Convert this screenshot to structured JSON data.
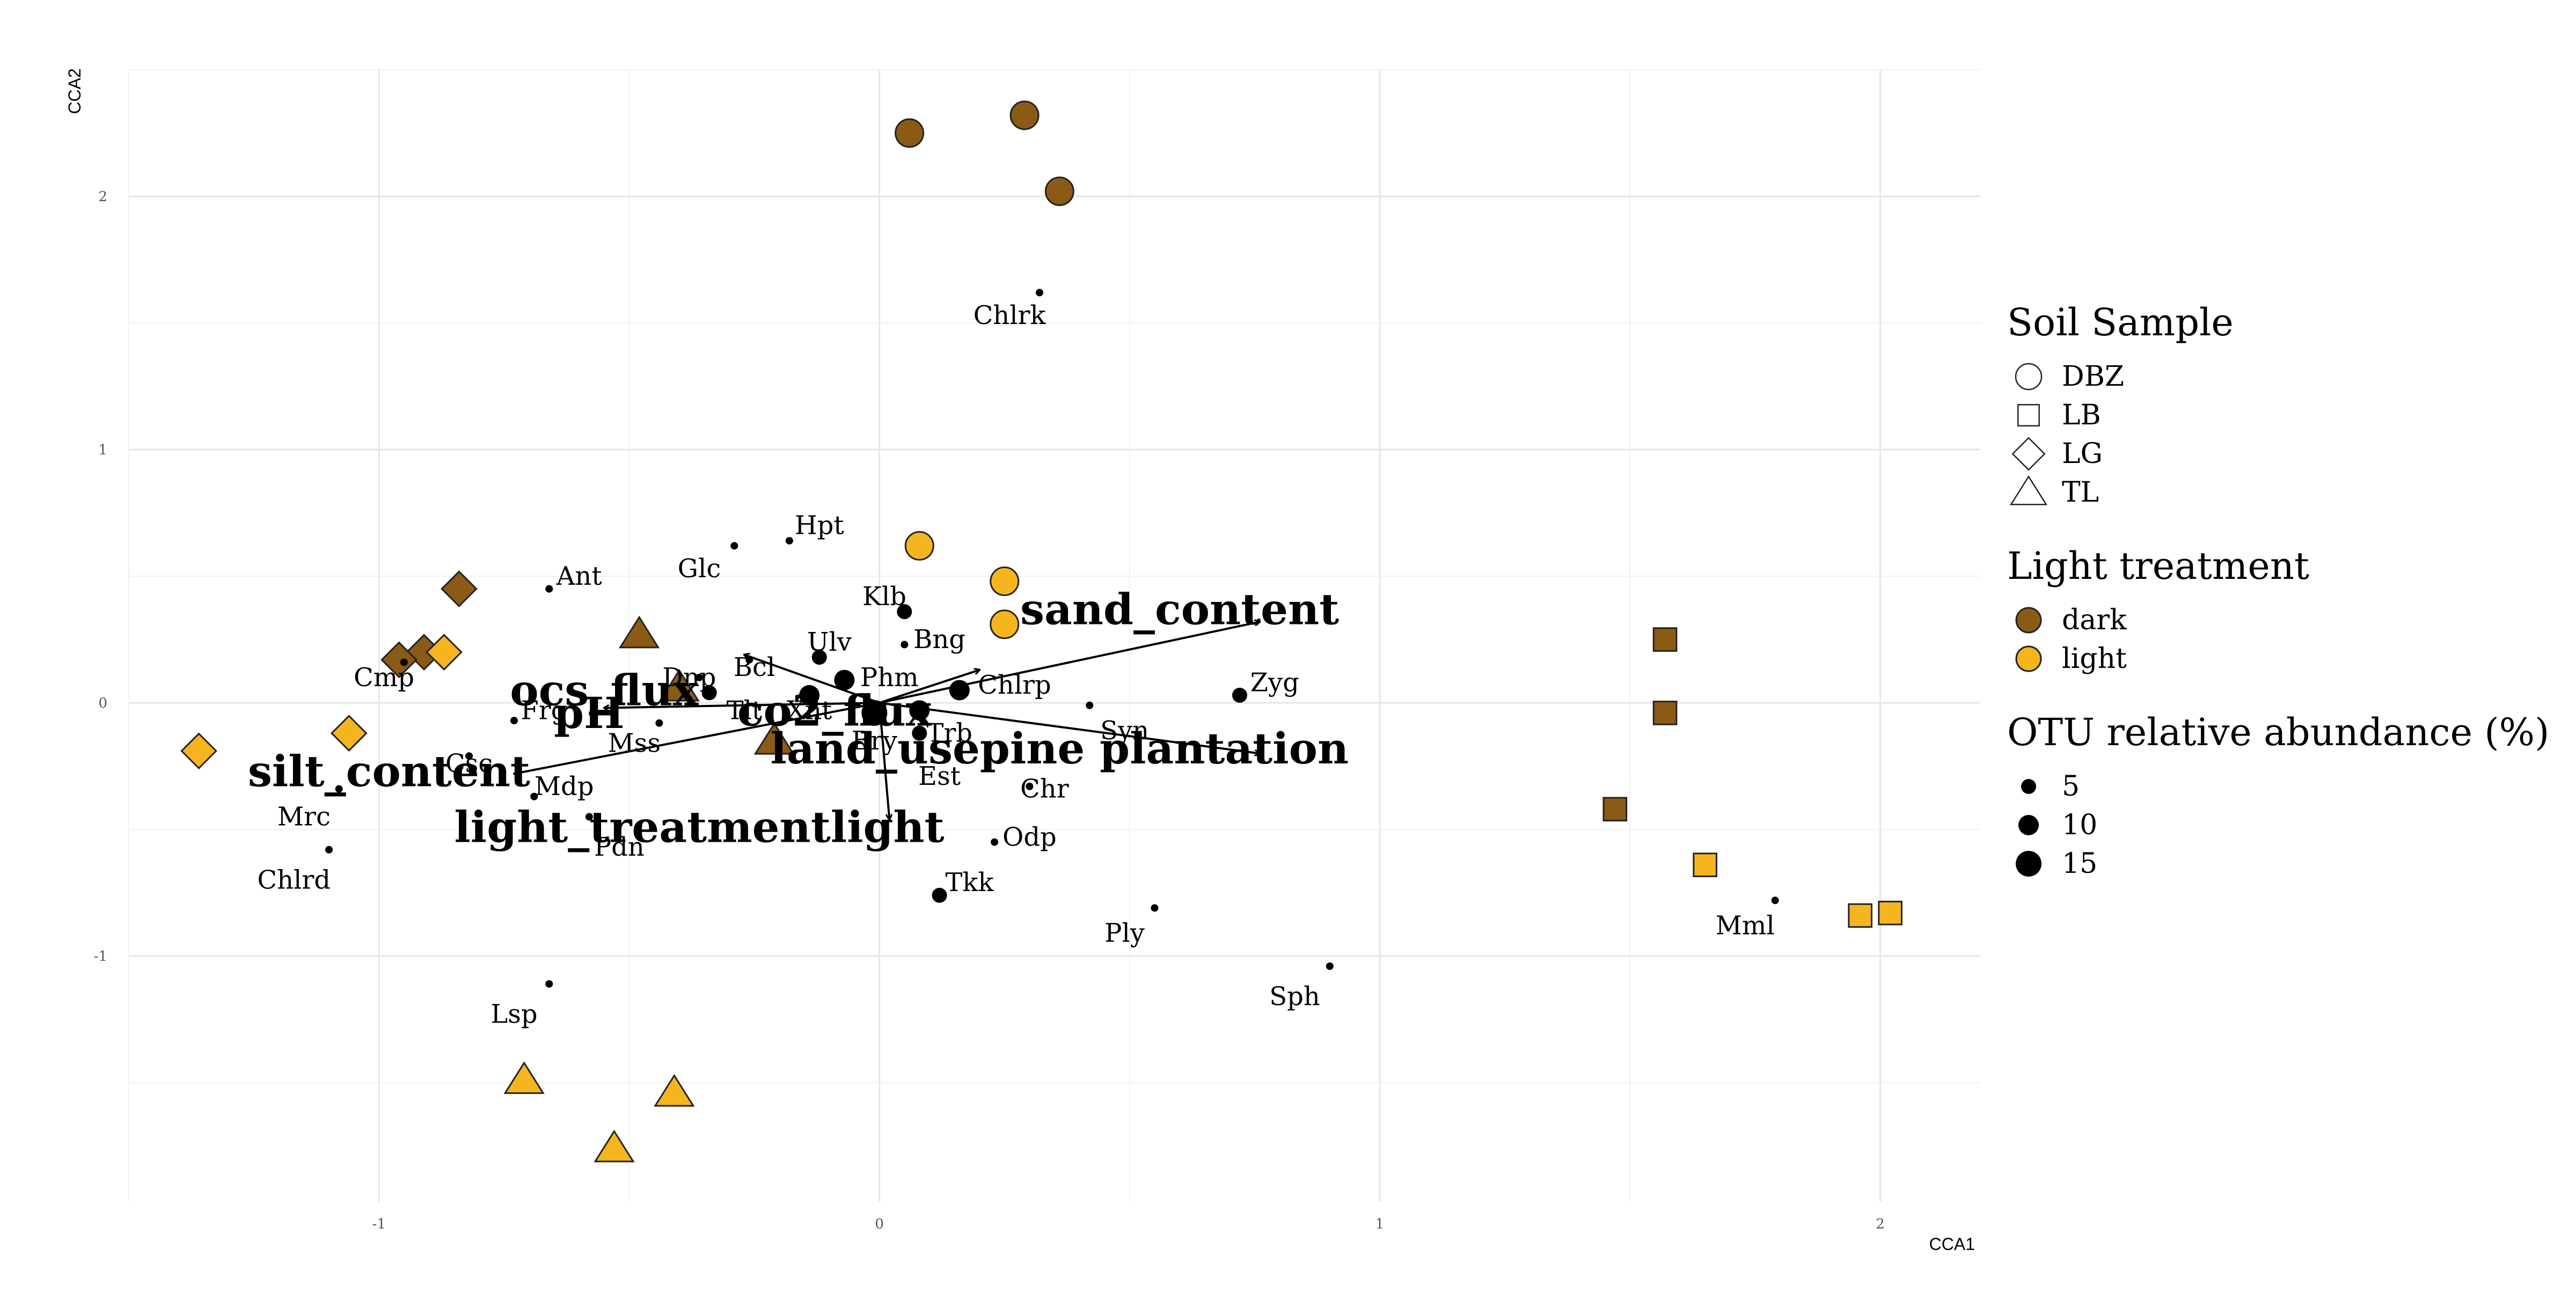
{
  "chart_data": {
    "type": "scatter",
    "xlabel": "CCA1",
    "ylabel": "CCA2",
    "xlim": [
      -1.5,
      2.2
    ],
    "ylim": [
      -1.97,
      2.5
    ],
    "x_ticks": [
      -1,
      0,
      1,
      2
    ],
    "y_ticks": [
      -1,
      0,
      1,
      2
    ],
    "x_tick_labels": [
      "-1",
      "0",
      "1",
      "2"
    ],
    "y_tick_labels": [
      "-1",
      "0",
      "1",
      "2"
    ],
    "grid": true,
    "legend_position": "right",
    "colors": {
      "dark": "#8B5A14",
      "light": "#F5B51E"
    },
    "samples": [
      {
        "shape": "DBZ",
        "light": "dark",
        "x": 0.06,
        "y": 2.25
      },
      {
        "shape": "DBZ",
        "light": "dark",
        "x": 0.29,
        "y": 2.32
      },
      {
        "shape": "DBZ",
        "light": "dark",
        "x": 0.36,
        "y": 2.02
      },
      {
        "shape": "DBZ",
        "light": "light",
        "x": 0.08,
        "y": 0.62
      },
      {
        "shape": "DBZ",
        "light": "light",
        "x": 0.25,
        "y": 0.48
      },
      {
        "shape": "DBZ",
        "light": "light",
        "x": 0.25,
        "y": 0.31
      },
      {
        "shape": "LB",
        "light": "dark",
        "x": 1.57,
        "y": 0.25
      },
      {
        "shape": "LB",
        "light": "dark",
        "x": 1.57,
        "y": -0.04
      },
      {
        "shape": "LB",
        "light": "dark",
        "x": 1.47,
        "y": -0.42
      },
      {
        "shape": "LB",
        "light": "light",
        "x": 1.65,
        "y": -0.64
      },
      {
        "shape": "LB",
        "light": "light",
        "x": 1.96,
        "y": -0.84
      },
      {
        "shape": "LB",
        "light": "light",
        "x": 2.02,
        "y": -0.83
      },
      {
        "shape": "LG",
        "light": "dark",
        "x": -0.84,
        "y": 0.45
      },
      {
        "shape": "LG",
        "light": "dark",
        "x": -0.91,
        "y": 0.2
      },
      {
        "shape": "LG",
        "light": "dark",
        "x": -0.96,
        "y": 0.17
      },
      {
        "shape": "LG",
        "light": "light",
        "x": -0.87,
        "y": 0.2
      },
      {
        "shape": "LG",
        "light": "light",
        "x": -1.06,
        "y": -0.12
      },
      {
        "shape": "LG",
        "light": "light",
        "x": -1.36,
        "y": -0.19
      },
      {
        "shape": "TL",
        "light": "dark",
        "x": -0.48,
        "y": 0.27
      },
      {
        "shape": "TL",
        "light": "dark",
        "x": -0.4,
        "y": 0.06
      },
      {
        "shape": "TL",
        "light": "dark",
        "x": -0.21,
        "y": -0.15
      },
      {
        "shape": "TL",
        "light": "light",
        "x": -0.71,
        "y": -1.49
      },
      {
        "shape": "TL",
        "light": "light",
        "x": -0.41,
        "y": -1.54
      },
      {
        "shape": "TL",
        "light": "light",
        "x": -0.53,
        "y": -1.76
      }
    ],
    "species": [
      {
        "label": "Chlrk",
        "x": 0.32,
        "y": 1.62,
        "lx": 0.26,
        "ly": 1.53,
        "abundance": 1
      },
      {
        "label": "Hpt",
        "x": -0.18,
        "y": 0.64,
        "lx": -0.12,
        "ly": 0.7,
        "abundance": 1
      },
      {
        "label": "Glc",
        "x": -0.29,
        "y": 0.62,
        "lx": -0.36,
        "ly": 0.53,
        "abundance": 1
      },
      {
        "label": "Ant",
        "x": -0.66,
        "y": 0.45,
        "lx": -0.6,
        "ly": 0.5,
        "abundance": 1
      },
      {
        "label": "Klb",
        "x": 0.05,
        "y": 0.36,
        "lx": 0.01,
        "ly": 0.42,
        "abundance": 5
      },
      {
        "label": "Bng",
        "x": 0.05,
        "y": 0.23,
        "lx": 0.12,
        "ly": 0.25,
        "abundance": 1
      },
      {
        "label": "Ulv",
        "x": -0.12,
        "y": 0.18,
        "lx": -0.1,
        "ly": 0.24,
        "abundance": 5
      },
      {
        "label": "Bcl",
        "x": -0.26,
        "y": 0.17,
        "lx": -0.25,
        "ly": 0.14,
        "abundance": 1
      },
      {
        "label": "Dnp",
        "x": -0.36,
        "y": 0.1,
        "lx": -0.38,
        "ly": 0.1,
        "abundance": 1
      },
      {
        "label": "Cmp",
        "x": -0.95,
        "y": 0.16,
        "lx": -0.99,
        "ly": 0.1,
        "abundance": 1
      },
      {
        "label": "Phm",
        "x": -0.07,
        "y": 0.09,
        "lx": 0.02,
        "ly": 0.1,
        "abundance": 10
      },
      {
        "label": "Chlrp",
        "x": 0.16,
        "y": 0.05,
        "lx": 0.27,
        "ly": 0.07,
        "abundance": 10
      },
      {
        "label": "Zyg",
        "x": 0.72,
        "y": 0.03,
        "lx": 0.79,
        "ly": 0.08,
        "abundance": 5
      },
      {
        "label": "Tlt",
        "x": -0.34,
        "y": 0.04,
        "lx": -0.27,
        "ly": -0.03,
        "abundance": 5
      },
      {
        "label": "Xnt",
        "x": -0.14,
        "y": 0.03,
        "lx": -0.14,
        "ly": -0.03,
        "abundance": 10
      },
      {
        "label": "Frg",
        "x": -0.73,
        "y": -0.07,
        "lx": -0.67,
        "ly": -0.03,
        "abundance": 1
      },
      {
        "label": "Syn",
        "x": 0.42,
        "y": -0.01,
        "lx": 0.49,
        "ly": -0.11,
        "abundance": 1
      },
      {
        "label": "Mss",
        "x": -0.44,
        "y": -0.08,
        "lx": -0.49,
        "ly": -0.16,
        "abundance": 1
      },
      {
        "label": "Bry",
        "x": -0.01,
        "y": -0.04,
        "lx": -0.01,
        "ly": -0.15,
        "abundance": 15
      },
      {
        "label": "Trb",
        "x": 0.08,
        "y": -0.03,
        "lx": 0.14,
        "ly": -0.12,
        "abundance": 10
      },
      {
        "label": "Csc",
        "x": -0.82,
        "y": -0.21,
        "lx": -0.82,
        "ly": -0.24,
        "abundance": 1
      },
      {
        "label": "Mdp",
        "x": -0.69,
        "y": -0.37,
        "lx": -0.63,
        "ly": -0.33,
        "abundance": 1
      },
      {
        "label": "Est",
        "x": 0.08,
        "y": -0.12,
        "lx": 0.12,
        "ly": -0.29,
        "abundance": 5
      },
      {
        "label": "Chr",
        "x": 0.3,
        "y": -0.33,
        "lx": 0.33,
        "ly": -0.34,
        "abundance": 1
      },
      {
        "label": "Mrc",
        "x": -1.08,
        "y": -0.34,
        "lx": -1.15,
        "ly": -0.45,
        "abundance": 1
      },
      {
        "label": "Pdn",
        "x": -0.58,
        "y": -0.45,
        "lx": -0.52,
        "ly": -0.57,
        "abundance": 1
      },
      {
        "label": "Odp",
        "x": 0.23,
        "y": -0.55,
        "lx": 0.3,
        "ly": -0.53,
        "abundance": 1
      },
      {
        "label": "Chlrd",
        "x": -1.1,
        "y": -0.58,
        "lx": -1.17,
        "ly": -0.7,
        "abundance": 1
      },
      {
        "label": "Tkk",
        "x": 0.12,
        "y": -0.76,
        "lx": 0.18,
        "ly": -0.71,
        "abundance": 5
      },
      {
        "label": "Ply",
        "x": 0.55,
        "y": -0.81,
        "lx": 0.49,
        "ly": -0.91,
        "abundance": 1
      },
      {
        "label": "Mml",
        "x": 1.79,
        "y": -0.78,
        "lx": 1.73,
        "ly": -0.88,
        "abundance": 1
      },
      {
        "label": "Sph",
        "x": 0.9,
        "y": -1.04,
        "lx": 0.83,
        "ly": -1.16,
        "abundance": 1
      },
      {
        "label": "Lsp",
        "x": -0.66,
        "y": -1.11,
        "lx": -0.73,
        "ly": -1.23,
        "abundance": 1
      }
    ],
    "environment": [
      {
        "label": "sand_content",
        "x": 0.76,
        "y": 0.32,
        "lx": 0.6,
        "ly": 0.37
      },
      {
        "label": "land_usepine plantation",
        "x": 0.76,
        "y": -0.2,
        "lx": 0.36,
        "ly": -0.18
      },
      {
        "label": "silt_content",
        "x": -0.73,
        "y": -0.28,
        "lx": -0.98,
        "ly": -0.27
      },
      {
        "label": "pH",
        "x": -0.55,
        "y": -0.02,
        "lx": -0.58,
        "ly": -0.04
      },
      {
        "label": "ocs_flux",
        "x": -0.27,
        "y": 0.19,
        "lx": -0.55,
        "ly": 0.05
      },
      {
        "label": "co2_flux",
        "x": 0.2,
        "y": 0.13,
        "lx": -0.09,
        "ly": -0.03
      },
      {
        "label": "light_treatmentlight",
        "x": 0.02,
        "y": -0.46,
        "lx": -0.36,
        "ly": -0.49
      }
    ]
  },
  "legend": {
    "shape_title": "Soil Sample",
    "shapes": [
      {
        "key": "DBZ",
        "label": "DBZ"
      },
      {
        "key": "LB",
        "label": "LB"
      },
      {
        "key": "LG",
        "label": "LG"
      },
      {
        "key": "TL",
        "label": "TL"
      }
    ],
    "color_title": "Light treatment",
    "colors": [
      {
        "key": "dark",
        "label": "dark"
      },
      {
        "key": "light",
        "label": "light"
      }
    ],
    "size_title": "OTU relative abundance (%)",
    "sizes": [
      {
        "value": 5,
        "label": "5"
      },
      {
        "value": 10,
        "label": "10"
      },
      {
        "value": 15,
        "label": "15"
      }
    ]
  }
}
